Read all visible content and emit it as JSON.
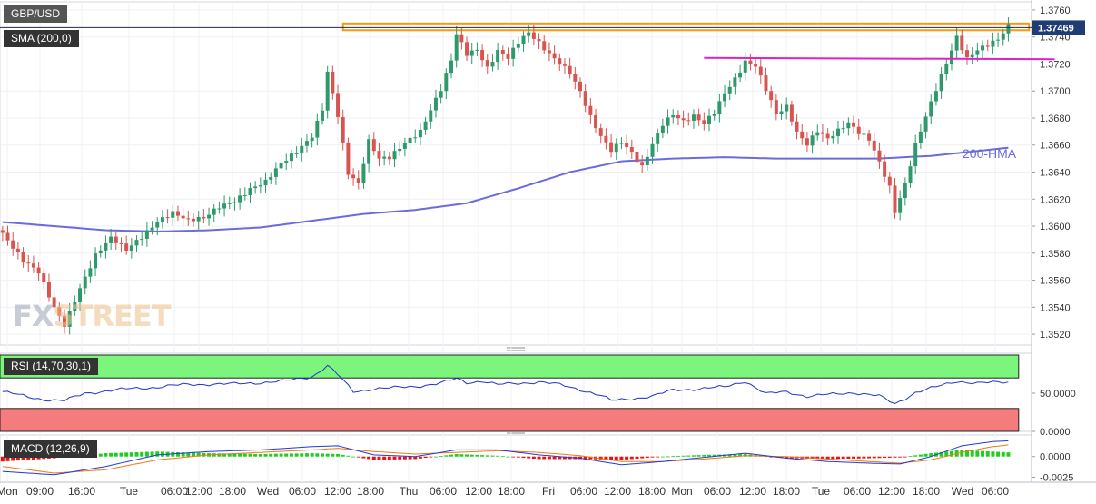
{
  "labels": {
    "symbol": "GBP/USD",
    "sma": "SMA (200,0)",
    "rsi": "RSI (14,70,30,1)",
    "macd": "MACD (12,26,9)",
    "hma": "200-HMA",
    "watermark_a": "FX",
    "watermark_b": "STREET",
    "last_price": "1.37469"
  },
  "colors": {
    "up": "#2e9a6b",
    "down": "#d9534f",
    "hma": "#6b6bdc",
    "resistance_band": "#f39c12",
    "pink_line": "#e020c8",
    "rsi_overbought": "#7cf57c",
    "rsi_oversold": "#f57c7c",
    "rsi_line": "#2233cc",
    "macd_line": "#1f3bd6",
    "signal_line": "#f07a10",
    "hist_pos": "#22cc22",
    "hist_neg": "#ee1111"
  },
  "chart_data": [
    {
      "type": "candlestick",
      "title": "GBP/USD",
      "x_tick_labels": [
        "Mon",
        "09:00",
        "16:00",
        "Tue",
        "06:00",
        "12:00",
        "18:00",
        "Wed",
        "06:00",
        "12:00",
        "18:00",
        "Thu",
        "06:00",
        "12:00",
        "18:00",
        "Fri",
        "06:00",
        "12:00",
        "18:00",
        "Mon",
        "06:00",
        "12:00",
        "18:00",
        "Tue",
        "06:00",
        "12:00",
        "18:00",
        "Wed",
        "06:00"
      ],
      "y_ticks": [
        "1.3520",
        "1.3540",
        "1.3560",
        "1.3580",
        "1.3600",
        "1.3620",
        "1.3640",
        "1.3660",
        "1.3680",
        "1.3700",
        "1.3720",
        "1.3740",
        "1.3760"
      ],
      "ylim": [
        1.3512,
        1.3766
      ],
      "close_path": [
        [
          0,
          1.3595
        ],
        [
          4,
          1.3573
        ],
        [
          7,
          1.3565
        ],
        [
          10,
          1.354
        ],
        [
          12,
          1.3528
        ],
        [
          15,
          1.3555
        ],
        [
          18,
          1.3578
        ],
        [
          21,
          1.359
        ],
        [
          24,
          1.3582
        ],
        [
          27,
          1.3593
        ],
        [
          30,
          1.3605
        ],
        [
          33,
          1.361
        ],
        [
          36,
          1.3603
        ],
        [
          39,
          1.3605
        ],
        [
          42,
          1.3615
        ],
        [
          45,
          1.362
        ],
        [
          48,
          1.3628
        ],
        [
          51,
          1.3632
        ],
        [
          54,
          1.3645
        ],
        [
          57,
          1.3655
        ],
        [
          60,
          1.3668
        ],
        [
          62,
          1.3688
        ],
        [
          63,
          1.3715
        ],
        [
          65,
          1.3682
        ],
        [
          67,
          1.3638
        ],
        [
          69,
          1.363
        ],
        [
          71,
          1.3662
        ],
        [
          73,
          1.365
        ],
        [
          75,
          1.3652
        ],
        [
          78,
          1.3663
        ],
        [
          81,
          1.367
        ],
        [
          83,
          1.3685
        ],
        [
          85,
          1.37
        ],
        [
          87,
          1.3722
        ],
        [
          88,
          1.3742
        ],
        [
          90,
          1.3728
        ],
        [
          92,
          1.3732
        ],
        [
          94,
          1.3718
        ],
        [
          96,
          1.373
        ],
        [
          98,
          1.3724
        ],
        [
          100,
          1.3735
        ],
        [
          102,
          1.3742
        ],
        [
          104,
          1.3735
        ],
        [
          106,
          1.3728
        ],
        [
          108,
          1.3722
        ],
        [
          110,
          1.3715
        ],
        [
          112,
          1.37
        ],
        [
          114,
          1.368
        ],
        [
          116,
          1.3665
        ],
        [
          118,
          1.3655
        ],
        [
          120,
          1.3662
        ],
        [
          122,
          1.3655
        ],
        [
          124,
          1.3645
        ],
        [
          126,
          1.3662
        ],
        [
          128,
          1.3676
        ],
        [
          130,
          1.3682
        ],
        [
          132,
          1.3676
        ],
        [
          134,
          1.368
        ],
        [
          136,
          1.3676
        ],
        [
          138,
          1.3685
        ],
        [
          140,
          1.37
        ],
        [
          142,
          1.371
        ],
        [
          144,
          1.3722
        ],
        [
          146,
          1.3718
        ],
        [
          148,
          1.37
        ],
        [
          150,
          1.3682
        ],
        [
          152,
          1.3688
        ],
        [
          154,
          1.367
        ],
        [
          156,
          1.3662
        ],
        [
          158,
          1.3672
        ],
        [
          160,
          1.3665
        ],
        [
          162,
          1.367
        ],
        [
          164,
          1.3675
        ],
        [
          166,
          1.3668
        ],
        [
          168,
          1.3664
        ],
        [
          170,
          1.3648
        ],
        [
          172,
          1.363
        ],
        [
          173,
          1.3612
        ],
        [
          175,
          1.3632
        ],
        [
          177,
          1.366
        ],
        [
          179,
          1.368
        ],
        [
          181,
          1.37
        ],
        [
          183,
          1.372
        ],
        [
          185,
          1.374
        ],
        [
          187,
          1.3725
        ],
        [
          189,
          1.3732
        ],
        [
          191,
          1.3735
        ],
        [
          193,
          1.3738
        ],
        [
          195,
          1.3747
        ]
      ],
      "hma_200": [
        [
          0,
          1.3603
        ],
        [
          10,
          1.36
        ],
        [
          20,
          1.3597
        ],
        [
          30,
          1.3596
        ],
        [
          40,
          1.3597
        ],
        [
          50,
          1.3599
        ],
        [
          60,
          1.3604
        ],
        [
          70,
          1.3609
        ],
        [
          80,
          1.3612
        ],
        [
          90,
          1.3617
        ],
        [
          100,
          1.3628
        ],
        [
          110,
          1.364
        ],
        [
          120,
          1.3648
        ],
        [
          130,
          1.365
        ],
        [
          140,
          1.3651
        ],
        [
          150,
          1.365
        ],
        [
          160,
          1.365
        ],
        [
          170,
          1.365
        ],
        [
          180,
          1.3652
        ],
        [
          190,
          1.3656
        ],
        [
          195,
          1.3658
        ]
      ],
      "resistance_band": {
        "y": [
          1.3745,
          1.375
        ],
        "x": [
          66,
          199
        ]
      },
      "pink_line": {
        "y": [
          1.37235,
          1.37245
        ],
        "x": [
          136,
          204
        ]
      }
    },
    {
      "type": "line",
      "title": "RSI (14,70,30,1)",
      "y_ticks": [
        "50.0000",
        "0.0000"
      ],
      "ylim": [
        0,
        100
      ],
      "overbought": 70,
      "oversold": 30,
      "values": [
        [
          0,
          52
        ],
        [
          5,
          45
        ],
        [
          8,
          42
        ],
        [
          12,
          40
        ],
        [
          16,
          50
        ],
        [
          20,
          53
        ],
        [
          25,
          56
        ],
        [
          30,
          58
        ],
        [
          35,
          61
        ],
        [
          40,
          62
        ],
        [
          45,
          62
        ],
        [
          50,
          64
        ],
        [
          55,
          66
        ],
        [
          60,
          72
        ],
        [
          63,
          86
        ],
        [
          65,
          74
        ],
        [
          68,
          52
        ],
        [
          72,
          56
        ],
        [
          76,
          57
        ],
        [
          80,
          59
        ],
        [
          85,
          63
        ],
        [
          88,
          69
        ],
        [
          90,
          64
        ],
        [
          93,
          66
        ],
        [
          96,
          61
        ],
        [
          100,
          63
        ],
        [
          104,
          65
        ],
        [
          108,
          61
        ],
        [
          112,
          55
        ],
        [
          116,
          47
        ],
        [
          118,
          40
        ],
        [
          122,
          43
        ],
        [
          126,
          46
        ],
        [
          130,
          54
        ],
        [
          135,
          56
        ],
        [
          140,
          58
        ],
        [
          144,
          66
        ],
        [
          148,
          49
        ],
        [
          152,
          52
        ],
        [
          156,
          46
        ],
        [
          160,
          48
        ],
        [
          165,
          51
        ],
        [
          170,
          46
        ],
        [
          173,
          36
        ],
        [
          177,
          51
        ],
        [
          181,
          58
        ],
        [
          185,
          66
        ],
        [
          189,
          63
        ],
        [
          193,
          64
        ],
        [
          195,
          65
        ]
      ]
    },
    {
      "type": "bar",
      "title": "MACD (12,26,9)",
      "y_ticks": [
        "0.0000",
        "-0.0025"
      ],
      "ylim": [
        -0.0031,
        0.0026
      ],
      "macd_line": [
        [
          0,
          -0.0018
        ],
        [
          10,
          -0.0022
        ],
        [
          20,
          -0.0012
        ],
        [
          30,
          0.0002
        ],
        [
          40,
          0.0006
        ],
        [
          50,
          0.0008
        ],
        [
          60,
          0.0012
        ],
        [
          65,
          0.0013
        ],
        [
          72,
          0.0002
        ],
        [
          80,
          0.0
        ],
        [
          88,
          0.0008
        ],
        [
          96,
          0.0008
        ],
        [
          104,
          0.0002
        ],
        [
          112,
          -0.0002
        ],
        [
          120,
          -0.001
        ],
        [
          128,
          -0.0006
        ],
        [
          136,
          -0.0001
        ],
        [
          144,
          0.0004
        ],
        [
          152,
          -0.0002
        ],
        [
          160,
          -0.0006
        ],
        [
          168,
          -0.0008
        ],
        [
          174,
          -0.0009
        ],
        [
          180,
          0.0
        ],
        [
          186,
          0.0013
        ],
        [
          192,
          0.0018
        ],
        [
          195,
          0.0019
        ]
      ],
      "signal_line": [
        [
          0,
          -0.0012
        ],
        [
          10,
          -0.002
        ],
        [
          20,
          -0.0016
        ],
        [
          30,
          -0.0004
        ],
        [
          40,
          0.0002
        ],
        [
          50,
          0.0005
        ],
        [
          60,
          0.0008
        ],
        [
          65,
          0.001
        ],
        [
          72,
          0.0006
        ],
        [
          80,
          0.0003
        ],
        [
          88,
          0.0005
        ],
        [
          96,
          0.0007
        ],
        [
          104,
          0.0005
        ],
        [
          112,
          0.0001
        ],
        [
          120,
          -0.0006
        ],
        [
          128,
          -0.0006
        ],
        [
          136,
          -0.0003
        ],
        [
          144,
          0.0001
        ],
        [
          152,
          0.0
        ],
        [
          160,
          -0.0003
        ],
        [
          168,
          -0.0006
        ],
        [
          174,
          -0.0008
        ],
        [
          180,
          -0.0004
        ],
        [
          186,
          0.0005
        ],
        [
          192,
          0.0012
        ],
        [
          195,
          0.0014
        ]
      ],
      "histogram": [
        [
          0,
          -0.0006
        ],
        [
          10,
          -0.0002
        ],
        [
          20,
          0.0004
        ],
        [
          30,
          0.0006
        ],
        [
          40,
          0.0004
        ],
        [
          50,
          0.0003
        ],
        [
          60,
          0.0004
        ],
        [
          65,
          0.0003
        ],
        [
          72,
          -0.0004
        ],
        [
          80,
          -0.0003
        ],
        [
          88,
          0.0003
        ],
        [
          96,
          0.0001
        ],
        [
          104,
          -0.0003
        ],
        [
          112,
          -0.0003
        ],
        [
          120,
          -0.0004
        ],
        [
          128,
          0.0
        ],
        [
          136,
          0.0002
        ],
        [
          144,
          0.0003
        ],
        [
          152,
          -0.0002
        ],
        [
          160,
          -0.0003
        ],
        [
          168,
          -0.0002
        ],
        [
          174,
          -0.0001
        ],
        [
          180,
          0.0004
        ],
        [
          186,
          0.0008
        ],
        [
          192,
          0.0006
        ],
        [
          195,
          0.0005
        ]
      ]
    }
  ]
}
